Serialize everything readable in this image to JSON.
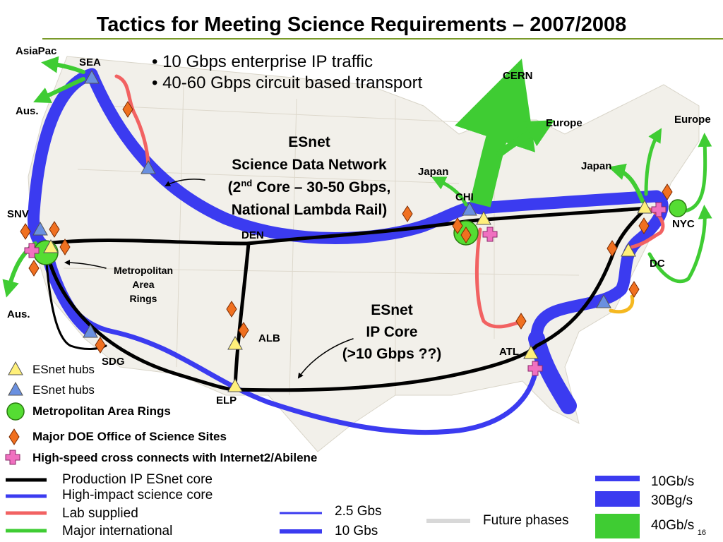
{
  "header": {
    "title": "Tactics for Meeting Science Requirements – 2007/2008",
    "page_number": "16"
  },
  "bullets": [
    "10 Gbps enterprise IP traffic",
    "40-60 Gbps circuit based transport"
  ],
  "map_labels": {
    "asiapac": "AsiaPac",
    "sea": "SEA",
    "aus_north": "Aus.",
    "aus_south": "Aus.",
    "snv": "SNV",
    "den": "DEN",
    "cern": "CERN",
    "europe_chi": "Europe",
    "europe_ne": "Europe",
    "japan_chi": "Japan",
    "japan_ny": "Japan",
    "chi": "CHI",
    "nyc": "NYC",
    "dc": "DC",
    "atl": "ATL",
    "alb": "ALB",
    "elp": "ELP",
    "sdg": "SDG"
  },
  "sdn_note": {
    "line1": "ESnet",
    "line2": "Science Data Network",
    "line3_prefix": "(2",
    "line3_sup": "nd",
    "line3_suffix": " Core – 30-50 Gbps,",
    "line4": "National Lambda Rail)"
  },
  "ip_core_note": [
    "ESnet",
    "IP Core",
    "(>10 Gbps ??)"
  ],
  "metro_note": [
    "Metropolitan",
    "Area",
    "Rings"
  ],
  "symbol_legend": [
    "ESnet hubs",
    "ESnet hubs",
    "Metropolitan Area Rings",
    "Major DOE Office of Science Sites",
    "High-speed cross connects with Internet2/Abilene"
  ],
  "line_legend": {
    "types": [
      "Production IP ESnet core",
      "High-impact science core",
      "Lab supplied",
      "Major international"
    ],
    "widths_left": [
      "2.5 Gbs",
      "10 Gbs"
    ],
    "future": "Future phases",
    "widths_right": [
      "10Gb/s",
      "30Bg/s",
      "40Gb/s"
    ]
  }
}
